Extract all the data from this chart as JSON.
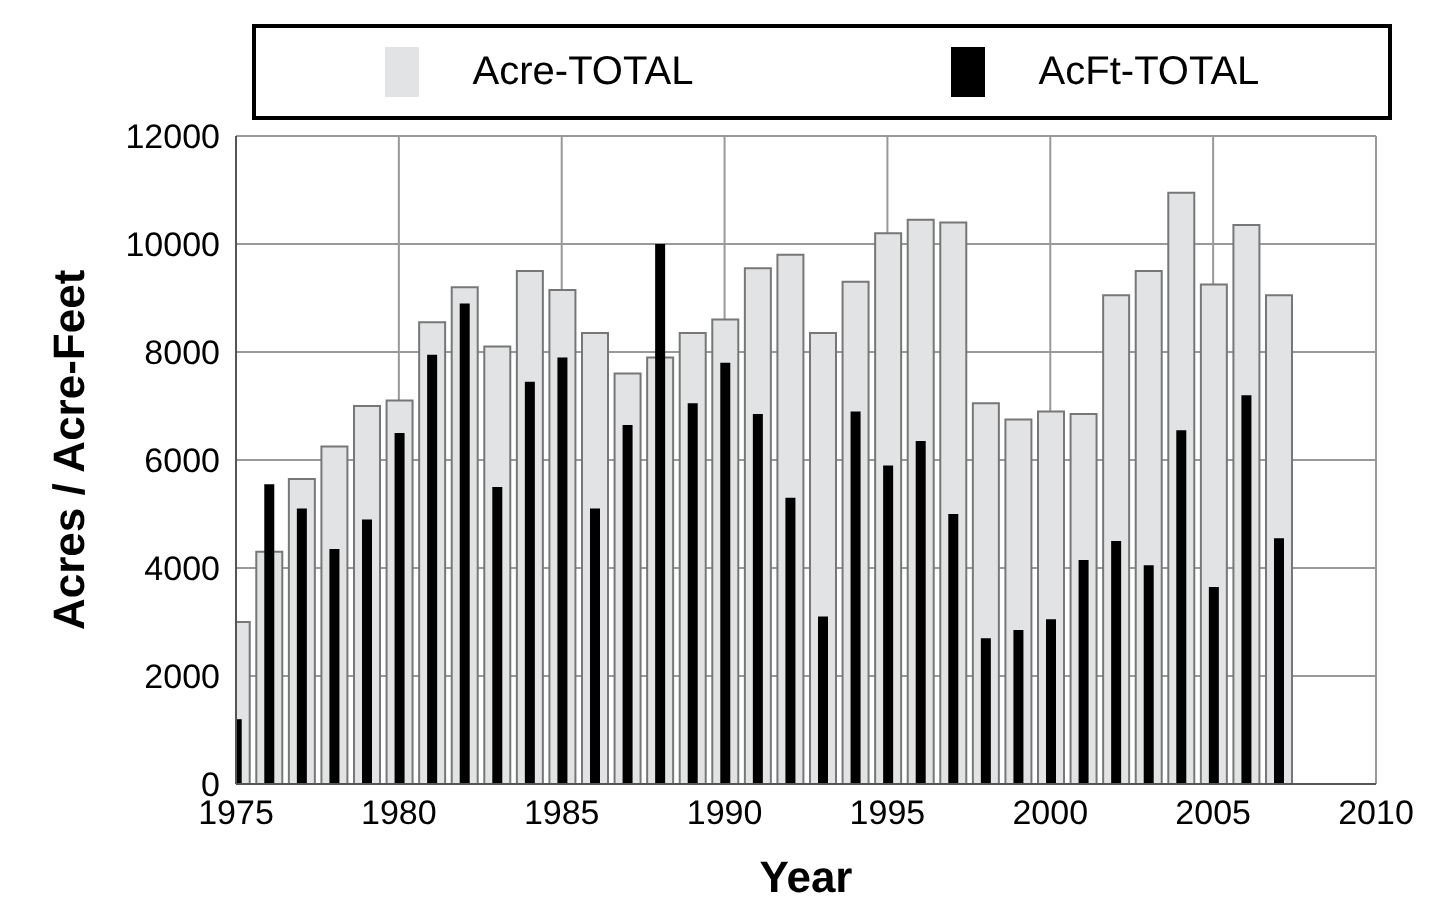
{
  "chart_data": {
    "type": "bar",
    "xlabel": "Year",
    "ylabel": "Acres / Acre-Feet",
    "x": [
      1975,
      1976,
      1977,
      1978,
      1979,
      1980,
      1981,
      1982,
      1983,
      1984,
      1985,
      1986,
      1987,
      1988,
      1989,
      1990,
      1991,
      1992,
      1993,
      1994,
      1995,
      1996,
      1997,
      1998,
      1999,
      2000,
      2001,
      2002,
      2003,
      2004,
      2005,
      2006,
      2007
    ],
    "series": [
      {
        "name": "Acre-TOTAL",
        "color": "#e2e3e4",
        "values": [
          3000,
          4300,
          5650,
          6250,
          7000,
          7100,
          8550,
          9200,
          8100,
          9500,
          9150,
          8350,
          7600,
          7900,
          8350,
          8600,
          9550,
          9800,
          8350,
          9300,
          10200,
          10450,
          10400,
          7050,
          6750,
          6900,
          6850,
          9050,
          9500,
          10950,
          9250,
          10350,
          9050
        ]
      },
      {
        "name": "AcFt-TOTAL",
        "color": "#000000",
        "values": [
          1200,
          5550,
          5100,
          4350,
          4900,
          6500,
          7950,
          8900,
          5500,
          7450,
          7900,
          5100,
          6650,
          10000,
          7050,
          7800,
          6850,
          5300,
          3100,
          6900,
          5900,
          6350,
          5000,
          2700,
          2850,
          3050,
          4150,
          4500,
          4050,
          6550,
          3650,
          7200,
          4550
        ]
      }
    ],
    "xlim": [
      1975,
      2010
    ],
    "xticks": [
      1975,
      1980,
      1985,
      1990,
      1995,
      2000,
      2005,
      2010
    ],
    "ylim": [
      0,
      12000
    ],
    "yticks": [
      0,
      2000,
      4000,
      6000,
      8000,
      10000,
      12000
    ],
    "grid": true,
    "legend": "top"
  }
}
